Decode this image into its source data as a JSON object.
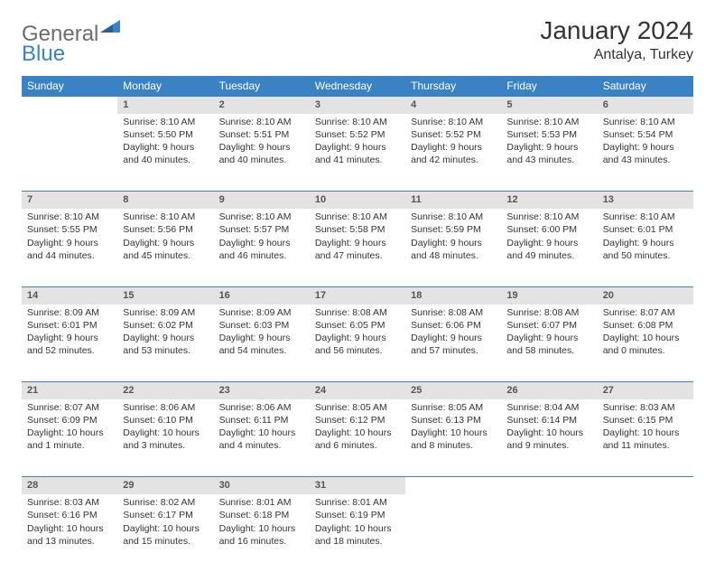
{
  "logo": {
    "part1": "General",
    "part2": "Blue"
  },
  "title": "January 2024",
  "location": "Antalya, Turkey",
  "colors": {
    "header_bg": "#3a82c4",
    "header_text": "#ffffff",
    "daynum_bg": "#e3e3e3",
    "body_text": "#333333",
    "logo_gray": "#6c6c6c",
    "logo_blue": "#3a82c4"
  },
  "weekdays": [
    "Sunday",
    "Monday",
    "Tuesday",
    "Wednesday",
    "Thursday",
    "Friday",
    "Saturday"
  ],
  "weeks": [
    {
      "nums": [
        "",
        "1",
        "2",
        "3",
        "4",
        "5",
        "6"
      ],
      "cells": [
        {
          "sunrise": "",
          "sunset": "",
          "daylight": ""
        },
        {
          "sunrise": "Sunrise: 8:10 AM",
          "sunset": "Sunset: 5:50 PM",
          "daylight": "Daylight: 9 hours and 40 minutes."
        },
        {
          "sunrise": "Sunrise: 8:10 AM",
          "sunset": "Sunset: 5:51 PM",
          "daylight": "Daylight: 9 hours and 40 minutes."
        },
        {
          "sunrise": "Sunrise: 8:10 AM",
          "sunset": "Sunset: 5:52 PM",
          "daylight": "Daylight: 9 hours and 41 minutes."
        },
        {
          "sunrise": "Sunrise: 8:10 AM",
          "sunset": "Sunset: 5:52 PM",
          "daylight": "Daylight: 9 hours and 42 minutes."
        },
        {
          "sunrise": "Sunrise: 8:10 AM",
          "sunset": "Sunset: 5:53 PM",
          "daylight": "Daylight: 9 hours and 43 minutes."
        },
        {
          "sunrise": "Sunrise: 8:10 AM",
          "sunset": "Sunset: 5:54 PM",
          "daylight": "Daylight: 9 hours and 43 minutes."
        }
      ]
    },
    {
      "nums": [
        "7",
        "8",
        "9",
        "10",
        "11",
        "12",
        "13"
      ],
      "cells": [
        {
          "sunrise": "Sunrise: 8:10 AM",
          "sunset": "Sunset: 5:55 PM",
          "daylight": "Daylight: 9 hours and 44 minutes."
        },
        {
          "sunrise": "Sunrise: 8:10 AM",
          "sunset": "Sunset: 5:56 PM",
          "daylight": "Daylight: 9 hours and 45 minutes."
        },
        {
          "sunrise": "Sunrise: 8:10 AM",
          "sunset": "Sunset: 5:57 PM",
          "daylight": "Daylight: 9 hours and 46 minutes."
        },
        {
          "sunrise": "Sunrise: 8:10 AM",
          "sunset": "Sunset: 5:58 PM",
          "daylight": "Daylight: 9 hours and 47 minutes."
        },
        {
          "sunrise": "Sunrise: 8:10 AM",
          "sunset": "Sunset: 5:59 PM",
          "daylight": "Daylight: 9 hours and 48 minutes."
        },
        {
          "sunrise": "Sunrise: 8:10 AM",
          "sunset": "Sunset: 6:00 PM",
          "daylight": "Daylight: 9 hours and 49 minutes."
        },
        {
          "sunrise": "Sunrise: 8:10 AM",
          "sunset": "Sunset: 6:01 PM",
          "daylight": "Daylight: 9 hours and 50 minutes."
        }
      ]
    },
    {
      "nums": [
        "14",
        "15",
        "16",
        "17",
        "18",
        "19",
        "20"
      ],
      "cells": [
        {
          "sunrise": "Sunrise: 8:09 AM",
          "sunset": "Sunset: 6:01 PM",
          "daylight": "Daylight: 9 hours and 52 minutes."
        },
        {
          "sunrise": "Sunrise: 8:09 AM",
          "sunset": "Sunset: 6:02 PM",
          "daylight": "Daylight: 9 hours and 53 minutes."
        },
        {
          "sunrise": "Sunrise: 8:09 AM",
          "sunset": "Sunset: 6:03 PM",
          "daylight": "Daylight: 9 hours and 54 minutes."
        },
        {
          "sunrise": "Sunrise: 8:08 AM",
          "sunset": "Sunset: 6:05 PM",
          "daylight": "Daylight: 9 hours and 56 minutes."
        },
        {
          "sunrise": "Sunrise: 8:08 AM",
          "sunset": "Sunset: 6:06 PM",
          "daylight": "Daylight: 9 hours and 57 minutes."
        },
        {
          "sunrise": "Sunrise: 8:08 AM",
          "sunset": "Sunset: 6:07 PM",
          "daylight": "Daylight: 9 hours and 58 minutes."
        },
        {
          "sunrise": "Sunrise: 8:07 AM",
          "sunset": "Sunset: 6:08 PM",
          "daylight": "Daylight: 10 hours and 0 minutes."
        }
      ]
    },
    {
      "nums": [
        "21",
        "22",
        "23",
        "24",
        "25",
        "26",
        "27"
      ],
      "cells": [
        {
          "sunrise": "Sunrise: 8:07 AM",
          "sunset": "Sunset: 6:09 PM",
          "daylight": "Daylight: 10 hours and 1 minute."
        },
        {
          "sunrise": "Sunrise: 8:06 AM",
          "sunset": "Sunset: 6:10 PM",
          "daylight": "Daylight: 10 hours and 3 minutes."
        },
        {
          "sunrise": "Sunrise: 8:06 AM",
          "sunset": "Sunset: 6:11 PM",
          "daylight": "Daylight: 10 hours and 4 minutes."
        },
        {
          "sunrise": "Sunrise: 8:05 AM",
          "sunset": "Sunset: 6:12 PM",
          "daylight": "Daylight: 10 hours and 6 minutes."
        },
        {
          "sunrise": "Sunrise: 8:05 AM",
          "sunset": "Sunset: 6:13 PM",
          "daylight": "Daylight: 10 hours and 8 minutes."
        },
        {
          "sunrise": "Sunrise: 8:04 AM",
          "sunset": "Sunset: 6:14 PM",
          "daylight": "Daylight: 10 hours and 9 minutes."
        },
        {
          "sunrise": "Sunrise: 8:03 AM",
          "sunset": "Sunset: 6:15 PM",
          "daylight": "Daylight: 10 hours and 11 minutes."
        }
      ]
    },
    {
      "nums": [
        "28",
        "29",
        "30",
        "31",
        "",
        "",
        ""
      ],
      "cells": [
        {
          "sunrise": "Sunrise: 8:03 AM",
          "sunset": "Sunset: 6:16 PM",
          "daylight": "Daylight: 10 hours and 13 minutes."
        },
        {
          "sunrise": "Sunrise: 8:02 AM",
          "sunset": "Sunset: 6:17 PM",
          "daylight": "Daylight: 10 hours and 15 minutes."
        },
        {
          "sunrise": "Sunrise: 8:01 AM",
          "sunset": "Sunset: 6:18 PM",
          "daylight": "Daylight: 10 hours and 16 minutes."
        },
        {
          "sunrise": "Sunrise: 8:01 AM",
          "sunset": "Sunset: 6:19 PM",
          "daylight": "Daylight: 10 hours and 18 minutes."
        },
        {
          "sunrise": "",
          "sunset": "",
          "daylight": ""
        },
        {
          "sunrise": "",
          "sunset": "",
          "daylight": ""
        },
        {
          "sunrise": "",
          "sunset": "",
          "daylight": ""
        }
      ]
    }
  ]
}
